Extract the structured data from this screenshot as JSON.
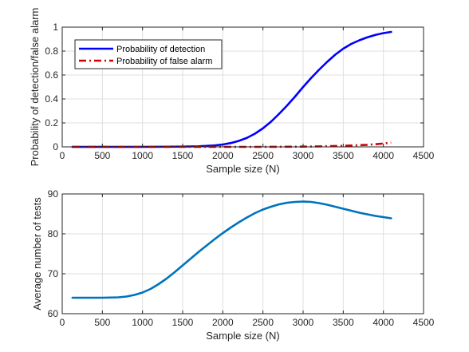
{
  "chart_data": [
    {
      "type": "line",
      "title": "",
      "xlabel": "Sample size (N)",
      "ylabel": "Probability of detection/false alarm",
      "xlim": [
        0,
        4500
      ],
      "ylim": [
        0,
        1
      ],
      "xticks": [
        0,
        500,
        1000,
        1500,
        2000,
        2500,
        3000,
        3500,
        4000,
        4500
      ],
      "yticks": [
        0,
        0.2,
        0.4,
        0.6,
        0.8,
        1
      ],
      "ytick_labels": [
        "0",
        "0.2",
        "0.4",
        "0.6",
        "0.8",
        "1"
      ],
      "grid": true,
      "legend_position": "top-left",
      "series": [
        {
          "name": "Probability of detection",
          "color": "#0000ff",
          "style": "solid",
          "x": [
            128,
            500,
            1000,
            1500,
            1700,
            1900,
            2000,
            2100,
            2200,
            2300,
            2400,
            2500,
            2600,
            2700,
            2800,
            2900,
            3000,
            3100,
            3200,
            3300,
            3400,
            3500,
            3600,
            3700,
            3800,
            3900,
            4000,
            4096
          ],
          "y": [
            0,
            0,
            0,
            0.002,
            0.005,
            0.012,
            0.02,
            0.032,
            0.05,
            0.075,
            0.11,
            0.155,
            0.21,
            0.275,
            0.345,
            0.42,
            0.5,
            0.575,
            0.645,
            0.71,
            0.77,
            0.82,
            0.86,
            0.89,
            0.915,
            0.935,
            0.95,
            0.96
          ]
        },
        {
          "name": "Probability of false alarm",
          "color": "#d40000",
          "style": "dashdot",
          "x": [
            128,
            1000,
            2000,
            2500,
            2800,
            3000,
            3200,
            3400,
            3600,
            3800,
            3900,
            4000,
            4096
          ],
          "y": [
            0,
            0,
            0,
            0,
            0.001,
            0.002,
            0.004,
            0.007,
            0.011,
            0.017,
            0.022,
            0.028,
            0.035
          ]
        }
      ]
    },
    {
      "type": "line",
      "title": "",
      "xlabel": "Sample size (N)",
      "ylabel": "Average number of tests",
      "xlim": [
        0,
        4500
      ],
      "ylim": [
        60,
        90
      ],
      "xticks": [
        0,
        500,
        1000,
        1500,
        2000,
        2500,
        3000,
        3500,
        4000,
        4500
      ],
      "yticks": [
        60,
        70,
        80,
        90
      ],
      "ytick_labels": [
        "60",
        "70",
        "80",
        "90"
      ],
      "grid": true,
      "series": [
        {
          "color": "#0072bd",
          "style": "solid",
          "x": [
            128,
            500,
            700,
            800,
            900,
            1000,
            1100,
            1200,
            1300,
            1400,
            1500,
            1600,
            1700,
            1800,
            1900,
            2000,
            2100,
            2200,
            2300,
            2400,
            2500,
            2600,
            2700,
            2800,
            2900,
            3000,
            3100,
            3200,
            3300,
            3400,
            3500,
            3600,
            3700,
            3800,
            3900,
            4000,
            4096
          ],
          "y": [
            64,
            64,
            64.1,
            64.3,
            64.7,
            65.3,
            66.2,
            67.4,
            68.8,
            70.4,
            72.1,
            73.8,
            75.5,
            77.1,
            78.7,
            80.2,
            81.6,
            82.9,
            84.1,
            85.2,
            86.1,
            86.8,
            87.4,
            87.8,
            88,
            88.1,
            88,
            87.7,
            87.3,
            86.8,
            86.3,
            85.8,
            85.3,
            84.9,
            84.5,
            84.2,
            83.9
          ]
        }
      ]
    }
  ]
}
